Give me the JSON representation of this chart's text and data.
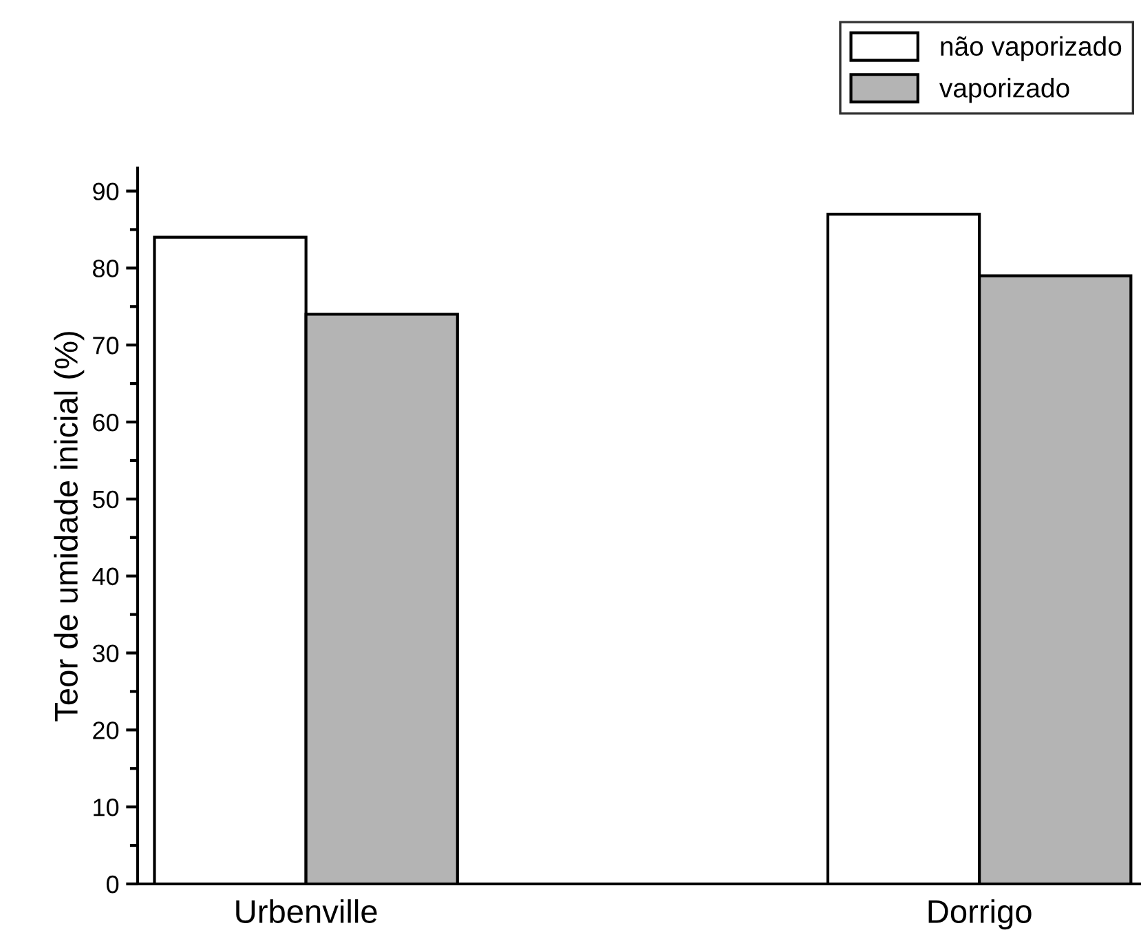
{
  "chart_data": {
    "type": "bar",
    "ylabel": "Teor de umidade inicial (%)",
    "categories": [
      "Urbenville",
      "Dorrigo"
    ],
    "series": [
      {
        "name": "não vaporizado",
        "color": "#ffffff",
        "values": [
          84,
          87
        ]
      },
      {
        "name": "vaporizado",
        "color": "#b4b4b4",
        "values": [
          74,
          79
        ]
      }
    ],
    "ylim": [
      0,
      93
    ],
    "yticks": [
      0,
      10,
      20,
      30,
      40,
      50,
      60,
      70,
      80,
      90
    ],
    "grid": false,
    "legend": "top right"
  }
}
